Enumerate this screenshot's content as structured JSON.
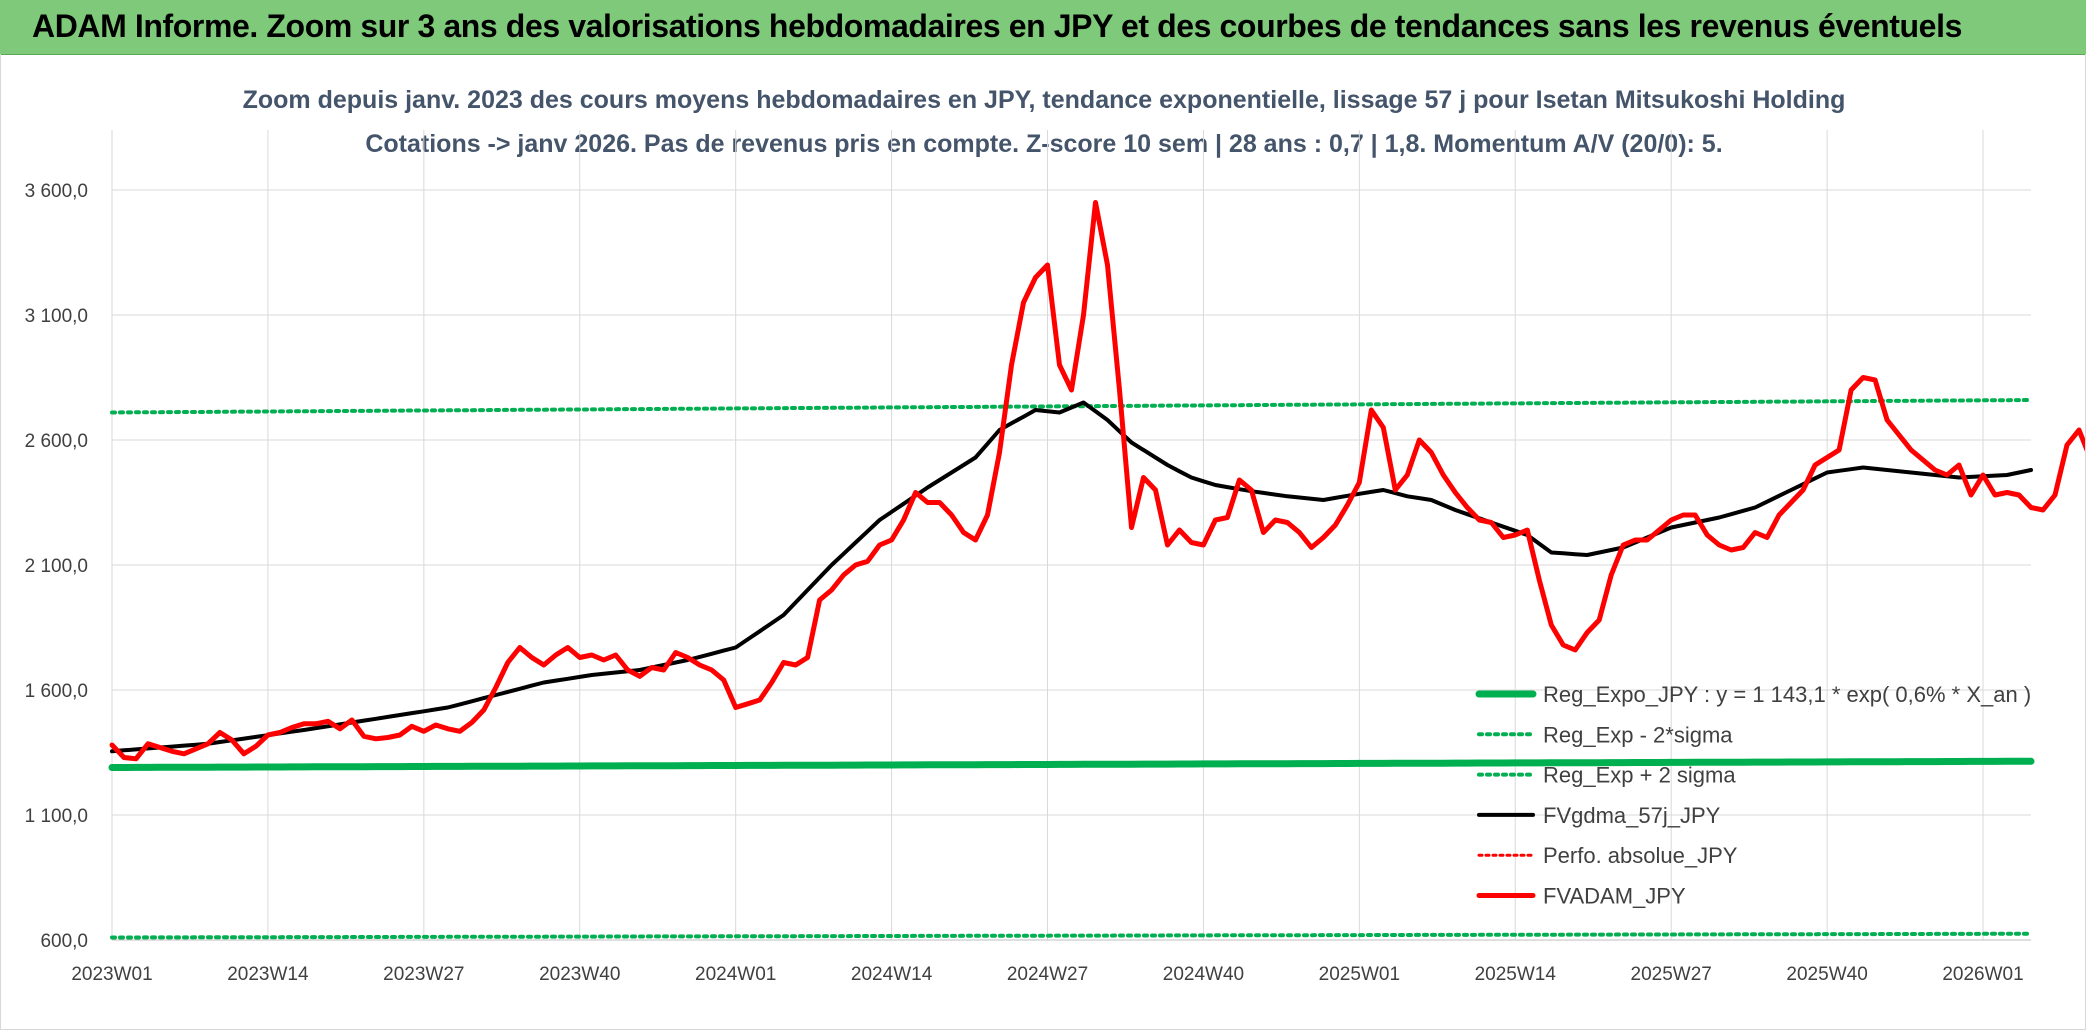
{
  "banner": {
    "title": "ADAM Informe. Zoom sur 3 ans des valorisations hebdomadaires en JPY et des courbes de tendances sans les revenus éventuels"
  },
  "chart_data": {
    "type": "line",
    "title": "Zoom depuis janv. 2023 des cours moyens hebdomadaires en JPY, tendance exponentielle, lissage 57 j pour Isetan Mitsukoshi Holding",
    "subtitle": "Cotations -> janv 2026. Pas de revenus pris en compte. Z-score 10 sem | 28 ans : 0,7  | 1,8. Momentum A/V (20/0): 5.",
    "xlabel": "",
    "ylabel": "",
    "ylim": [
      600,
      3600
    ],
    "grid": true,
    "legend_position": "right",
    "y_ticks": [
      "600,0",
      "1 100,0",
      "1 600,0",
      "2 100,0",
      "2 600,0",
      "3 100,0",
      "3 600,0"
    ],
    "y_tick_values": [
      600,
      1100,
      1600,
      2100,
      2600,
      3100,
      3600
    ],
    "x_tick_labels": [
      "2023W01",
      "2023W14",
      "2023W27",
      "2023W40",
      "2024W01",
      "2024W14",
      "2024W27",
      "2024W40",
      "2025W01",
      "2025W14",
      "2025W27",
      "2025W40",
      "2026W01"
    ],
    "x_tick_index": [
      0,
      13,
      26,
      39,
      52,
      65,
      78,
      91,
      104,
      117,
      130,
      143,
      156
    ],
    "n_points": 161,
    "series": [
      {
        "name": "Reg_Expo_JPY : y = 1 143,1 * exp( 0,6% *  X_an )",
        "color": "#00b050",
        "style": "solid",
        "width": 7,
        "values_start": 1290,
        "values_end": 1315
      },
      {
        "name": "Reg_Exp - 2*sigma",
        "color": "#00b050",
        "style": "dotted",
        "width": 4,
        "values_start": 610,
        "values_end": 625
      },
      {
        "name": "Reg_Exp + 2 sigma",
        "color": "#00b050",
        "style": "dotted",
        "width": 4,
        "values_start": 2710,
        "values_end": 2760
      },
      {
        "name": "FVgdma_57j_JPY",
        "color": "#000000",
        "style": "solid",
        "width": 4,
        "keys": [
          [
            0,
            1355
          ],
          [
            8,
            1385
          ],
          [
            16,
            1440
          ],
          [
            24,
            1500
          ],
          [
            28,
            1530
          ],
          [
            32,
            1580
          ],
          [
            36,
            1630
          ],
          [
            40,
            1660
          ],
          [
            44,
            1680
          ],
          [
            48,
            1720
          ],
          [
            52,
            1770
          ],
          [
            56,
            1900
          ],
          [
            60,
            2100
          ],
          [
            64,
            2280
          ],
          [
            68,
            2410
          ],
          [
            72,
            2530
          ],
          [
            74,
            2640
          ],
          [
            77,
            2720
          ],
          [
            79,
            2710
          ],
          [
            81,
            2750
          ],
          [
            83,
            2680
          ],
          [
            85,
            2590
          ],
          [
            88,
            2500
          ],
          [
            90,
            2450
          ],
          [
            92,
            2420
          ],
          [
            95,
            2395
          ],
          [
            98,
            2375
          ],
          [
            101,
            2360
          ],
          [
            104,
            2385
          ],
          [
            106,
            2400
          ],
          [
            108,
            2375
          ],
          [
            110,
            2360
          ],
          [
            112,
            2320
          ],
          [
            115,
            2270
          ],
          [
            118,
            2220
          ],
          [
            120,
            2150
          ],
          [
            123,
            2140
          ],
          [
            126,
            2170
          ],
          [
            130,
            2250
          ],
          [
            134,
            2290
          ],
          [
            137,
            2330
          ],
          [
            140,
            2400
          ],
          [
            143,
            2470
          ],
          [
            146,
            2490
          ],
          [
            150,
            2470
          ],
          [
            154,
            2450
          ],
          [
            158,
            2460
          ],
          [
            160,
            2480
          ]
        ]
      },
      {
        "name": "Perfo. absolue_JPY",
        "color": "#ff0000",
        "style": "dotted",
        "width": 3
      },
      {
        "name": "FVADAM_JPY",
        "color": "#ff0000",
        "style": "solid",
        "width": 5,
        "values": [
          1380,
          1330,
          1325,
          1385,
          1370,
          1355,
          1345,
          1365,
          1385,
          1430,
          1400,
          1345,
          1375,
          1420,
          1430,
          1450,
          1465,
          1465,
          1475,
          1445,
          1480,
          1415,
          1405,
          1410,
          1420,
          1455,
          1435,
          1460,
          1445,
          1435,
          1470,
          1520,
          1610,
          1710,
          1770,
          1730,
          1700,
          1740,
          1770,
          1730,
          1740,
          1720,
          1740,
          1680,
          1655,
          1690,
          1680,
          1750,
          1730,
          1700,
          1680,
          1640,
          1530,
          1545,
          1560,
          1630,
          1710,
          1700,
          1730,
          1960,
          2000,
          2060,
          2100,
          2115,
          2180,
          2200,
          2280,
          2390,
          2350,
          2350,
          2300,
          2230,
          2200,
          2300,
          2550,
          2900,
          3150,
          3250,
          3300,
          2900,
          2800,
          3100,
          3550,
          3300,
          2800,
          2250,
          2450,
          2400,
          2180,
          2240,
          2190,
          2180,
          2280,
          2290,
          2440,
          2400,
          2230,
          2280,
          2270,
          2230,
          2170,
          2210,
          2260,
          2340,
          2430,
          2720,
          2650,
          2400,
          2460,
          2600,
          2550,
          2460,
          2390,
          2330,
          2280,
          2270,
          2210,
          2220,
          2240,
          2040,
          1860,
          1780,
          1760,
          1830,
          1880,
          2060,
          2180,
          2200,
          2200,
          2240,
          2280,
          2300,
          2300,
          2220,
          2180,
          2160,
          2170,
          2230,
          2210,
          2300,
          2350,
          2400,
          2500,
          2530,
          2560,
          2800,
          2850,
          2840,
          2680,
          2620,
          2560,
          2520,
          2480,
          2460,
          2500,
          2380,
          2460,
          2380,
          2390,
          2380,
          2330,
          2320,
          2380,
          2580,
          2640,
          2520
        ]
      }
    ]
  }
}
